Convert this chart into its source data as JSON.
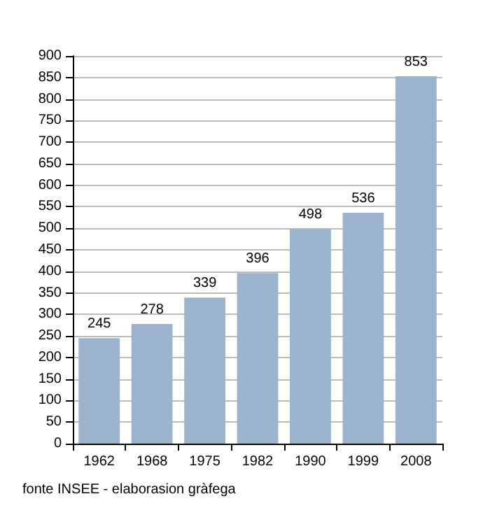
{
  "chart_data": {
    "type": "bar",
    "categories": [
      "1962",
      "1968",
      "1975",
      "1982",
      "1990",
      "1999",
      "2008"
    ],
    "values": [
      245,
      278,
      339,
      396,
      498,
      536,
      853
    ],
    "color": "#9bb3cd",
    "ylim": [
      0,
      900
    ],
    "yticks": [
      0,
      50,
      100,
      150,
      200,
      250,
      300,
      350,
      400,
      450,
      500,
      550,
      600,
      650,
      700,
      750,
      800,
      850,
      900
    ],
    "grid": "y",
    "data_labels": true,
    "annotations": [
      "fonte INSEE - elaborasion gràfega"
    ]
  }
}
